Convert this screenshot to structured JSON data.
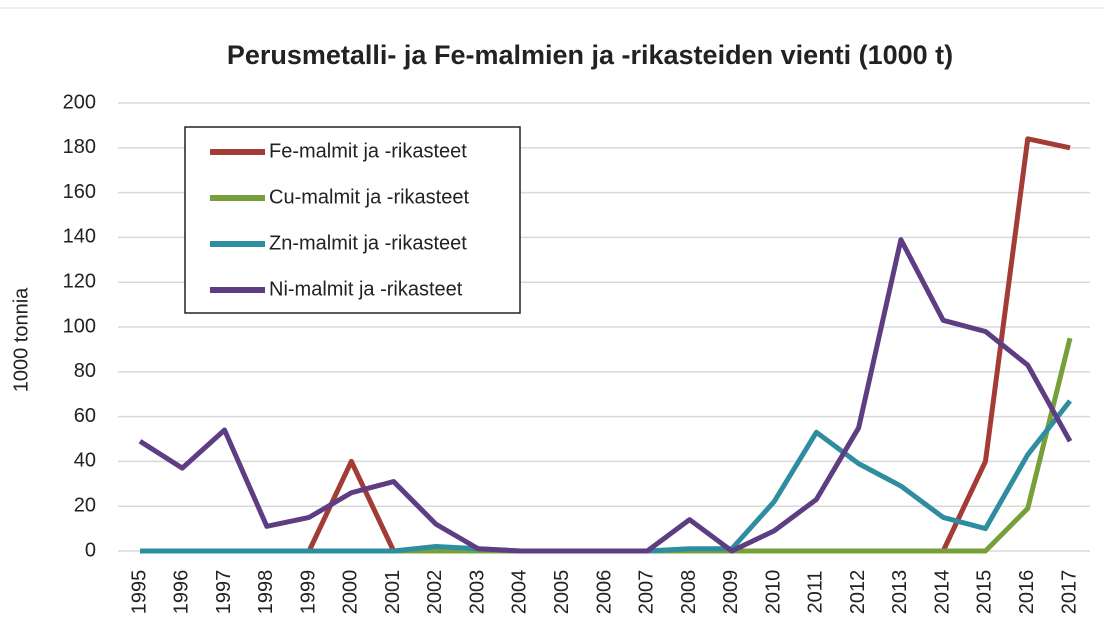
{
  "chart_data": {
    "type": "line",
    "title": "Perusmetalli- ja Fe-malmien ja -rikasteiden vienti (1000 t)",
    "ylabel": "1000 tonnia",
    "categories": [
      "1995",
      "1996",
      "1997",
      "1998",
      "1999",
      "2000",
      "2001",
      "2002",
      "2003",
      "2004",
      "2005",
      "2006",
      "2007",
      "2008",
      "2009",
      "2010",
      "2011",
      "2012",
      "2013",
      "2014",
      "2015",
      "2016",
      "2017"
    ],
    "series": [
      {
        "name": "Fe-malmit ja -rikasteet",
        "color": "#a33b36",
        "values": [
          0,
          0,
          0,
          0,
          0,
          40,
          0,
          0,
          0,
          0,
          0,
          0,
          0,
          0,
          0,
          0,
          0,
          0,
          0,
          0,
          40,
          184,
          180
        ]
      },
      {
        "name": "Cu-malmit ja -rikasteet",
        "color": "#77a03a",
        "values": [
          0,
          0,
          0,
          0,
          0,
          0,
          0,
          0,
          0,
          0,
          0,
          0,
          0,
          0,
          0,
          0,
          0,
          0,
          0,
          0,
          0,
          19,
          95
        ]
      },
      {
        "name": "Zn-malmit ja -rikasteet",
        "color": "#2e8ea0",
        "values": [
          0,
          0,
          0,
          0,
          0,
          0,
          0,
          2,
          1,
          0,
          0,
          0,
          0,
          1,
          1,
          22,
          53,
          39,
          29,
          15,
          10,
          43,
          67
        ]
      },
      {
        "name": "Ni-malmit ja -rikasteet",
        "color": "#5e3d82",
        "values": [
          49,
          37,
          54,
          11,
          15,
          26,
          31,
          12,
          1,
          0,
          0,
          0,
          0,
          14,
          0,
          9,
          23,
          55,
          139,
          103,
          98,
          83,
          49
        ]
      }
    ],
    "ylim": [
      0,
      200
    ],
    "yticks": [
      0,
      20,
      40,
      60,
      80,
      100,
      120,
      140,
      160,
      180,
      200
    ],
    "grid": true,
    "legend": "upper left"
  }
}
